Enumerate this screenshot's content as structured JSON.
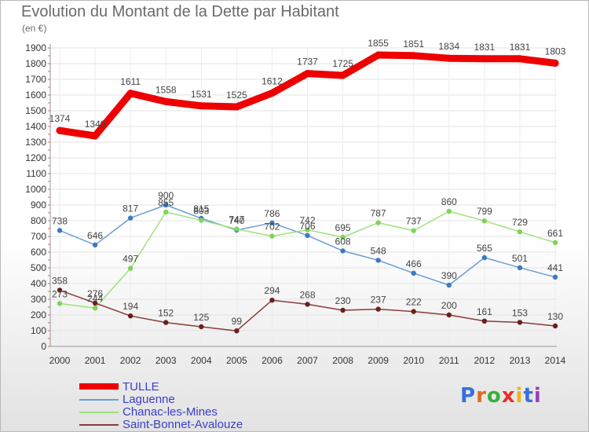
{
  "title": "Evolution du Montant de la Dette par Habitant",
  "subtitle": "(en €)",
  "logo": {
    "letters": [
      "P",
      "r",
      "o",
      "x",
      "i",
      "t",
      "i"
    ],
    "colors": [
      "#3a6fd8",
      "#e26a1e",
      "#3cae3a",
      "#e8302a",
      "#f0b21c",
      "#3a6fd8",
      "#9c3fb8"
    ]
  },
  "chart_data": {
    "type": "line",
    "x": [
      2000,
      2001,
      2002,
      2003,
      2004,
      2005,
      2006,
      2007,
      2008,
      2009,
      2010,
      2011,
      2012,
      2013,
      2014
    ],
    "ylim": [
      0,
      1900
    ],
    "yticks": [
      0,
      100,
      200,
      300,
      400,
      500,
      600,
      700,
      800,
      900,
      1000,
      1100,
      1200,
      1300,
      1400,
      1500,
      1600,
      1700,
      1800,
      1900
    ],
    "grid": true,
    "legend_position": "bottom-left",
    "series": [
      {
        "name": "TULLE",
        "color": "#ee0000",
        "emphasis": true,
        "values": [
          1374,
          1340,
          1611,
          1558,
          1531,
          1525,
          1612,
          1737,
          1725,
          1855,
          1851,
          1834,
          1831,
          1831,
          1803
        ]
      },
      {
        "name": "Laguenne",
        "color": "#6b9fd3",
        "point_color": "#3d79c4",
        "values": [
          738,
          646,
          817,
          900,
          815,
          740,
          786,
          706,
          608,
          548,
          466,
          390,
          565,
          501,
          441
        ]
      },
      {
        "name": "Chanac-les-Mines",
        "color": "#9ee27c",
        "point_color": "#7fd35a",
        "values": [
          273,
          244,
          497,
          855,
          803,
          747,
          702,
          742,
          695,
          787,
          737,
          860,
          799,
          729,
          661
        ]
      },
      {
        "name": "Saint-Bonnet-Avalouze",
        "color": "#8a3a3a",
        "point_color": "#6a1f1f",
        "values": [
          358,
          276,
          194,
          152,
          125,
          99,
          294,
          268,
          230,
          237,
          222,
          200,
          161,
          153,
          130
        ]
      }
    ]
  }
}
